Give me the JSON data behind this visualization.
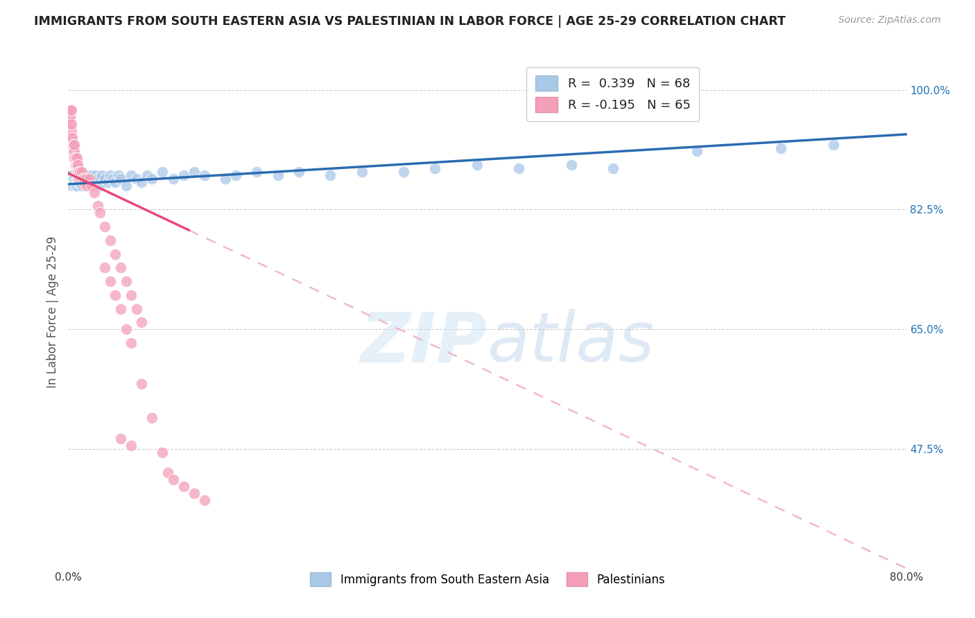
{
  "title": "IMMIGRANTS FROM SOUTH EASTERN ASIA VS PALESTINIAN IN LABOR FORCE | AGE 25-29 CORRELATION CHART",
  "source": "Source: ZipAtlas.com",
  "ylabel": "In Labor Force | Age 25-29",
  "xlim": [
    0.0,
    0.8
  ],
  "ylim": [
    0.3,
    1.05
  ],
  "xticks": [
    0.0,
    0.1,
    0.2,
    0.3,
    0.4,
    0.5,
    0.6,
    0.7,
    0.8
  ],
  "xtick_labels": [
    "0.0%",
    "",
    "",
    "",
    "",
    "",
    "",
    "",
    "80.0%"
  ],
  "ytick_labels_right": [
    "100.0%",
    "82.5%",
    "65.0%",
    "47.5%"
  ],
  "ytick_values_right": [
    1.0,
    0.825,
    0.65,
    0.475
  ],
  "blue_R": 0.339,
  "blue_N": 68,
  "pink_R": -0.195,
  "pink_N": 65,
  "blue_color": "#aac8e8",
  "pink_color": "#f4a0b8",
  "blue_line_color": "#2b6cb0",
  "pink_line_color": "#e8487a",
  "pink_dash_color": "#f0b8cc",
  "legend_blue_R": " 0.339",
  "legend_pink_R": "-0.195",
  "legend_blue_N": "68",
  "legend_pink_N": "65",
  "blue_scatter_x": [
    0.001,
    0.002,
    0.002,
    0.003,
    0.003,
    0.004,
    0.004,
    0.005,
    0.005,
    0.006,
    0.006,
    0.007,
    0.007,
    0.008,
    0.008,
    0.009,
    0.009,
    0.01,
    0.01,
    0.011,
    0.012,
    0.013,
    0.014,
    0.015,
    0.016,
    0.017,
    0.018,
    0.02,
    0.022,
    0.024,
    0.026,
    0.028,
    0.03,
    0.032,
    0.035,
    0.038,
    0.04,
    0.043,
    0.045,
    0.048,
    0.05,
    0.055,
    0.06,
    0.065,
    0.07,
    0.075,
    0.08,
    0.09,
    0.1,
    0.11,
    0.12,
    0.13,
    0.15,
    0.16,
    0.18,
    0.2,
    0.22,
    0.25,
    0.28,
    0.32,
    0.35,
    0.39,
    0.43,
    0.48,
    0.52,
    0.6,
    0.68,
    0.73
  ],
  "blue_scatter_y": [
    0.87,
    0.86,
    0.875,
    0.865,
    0.87,
    0.86,
    0.875,
    0.87,
    0.86,
    0.865,
    0.87,
    0.86,
    0.865,
    0.87,
    0.86,
    0.865,
    0.87,
    0.865,
    0.875,
    0.87,
    0.875,
    0.86,
    0.875,
    0.87,
    0.865,
    0.875,
    0.87,
    0.865,
    0.875,
    0.87,
    0.875,
    0.87,
    0.86,
    0.875,
    0.87,
    0.865,
    0.875,
    0.87,
    0.865,
    0.875,
    0.87,
    0.86,
    0.875,
    0.87,
    0.865,
    0.875,
    0.87,
    0.88,
    0.87,
    0.875,
    0.88,
    0.875,
    0.87,
    0.875,
    0.88,
    0.875,
    0.88,
    0.875,
    0.88,
    0.88,
    0.885,
    0.89,
    0.885,
    0.89,
    0.885,
    0.91,
    0.915,
    0.92
  ],
  "pink_scatter_x": [
    0.001,
    0.001,
    0.001,
    0.002,
    0.002,
    0.002,
    0.003,
    0.003,
    0.003,
    0.003,
    0.004,
    0.004,
    0.004,
    0.005,
    0.005,
    0.005,
    0.006,
    0.006,
    0.006,
    0.007,
    0.007,
    0.008,
    0.008,
    0.008,
    0.009,
    0.009,
    0.01,
    0.01,
    0.011,
    0.012,
    0.013,
    0.014,
    0.015,
    0.016,
    0.017,
    0.018,
    0.02,
    0.022,
    0.025,
    0.028,
    0.03,
    0.035,
    0.04,
    0.045,
    0.05,
    0.055,
    0.06,
    0.065,
    0.07,
    0.035,
    0.04,
    0.045,
    0.05,
    0.055,
    0.06,
    0.07,
    0.08,
    0.09,
    0.095,
    0.1,
    0.11,
    0.12,
    0.13,
    0.05,
    0.06
  ],
  "pink_scatter_y": [
    0.97,
    0.96,
    0.97,
    0.95,
    0.96,
    0.97,
    0.93,
    0.94,
    0.95,
    0.97,
    0.91,
    0.92,
    0.93,
    0.9,
    0.91,
    0.92,
    0.91,
    0.92,
    0.9,
    0.89,
    0.9,
    0.88,
    0.89,
    0.9,
    0.88,
    0.89,
    0.87,
    0.88,
    0.88,
    0.87,
    0.88,
    0.87,
    0.87,
    0.86,
    0.87,
    0.86,
    0.87,
    0.86,
    0.85,
    0.83,
    0.82,
    0.8,
    0.78,
    0.76,
    0.74,
    0.72,
    0.7,
    0.68,
    0.66,
    0.74,
    0.72,
    0.7,
    0.68,
    0.65,
    0.63,
    0.57,
    0.52,
    0.47,
    0.44,
    0.43,
    0.42,
    0.41,
    0.4,
    0.49,
    0.48
  ]
}
